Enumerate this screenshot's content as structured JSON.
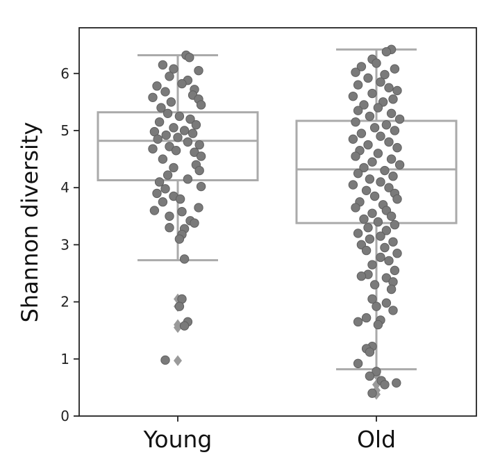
{
  "chart_data": {
    "type": "box",
    "overlay": "strip",
    "ylabel": "Shannon diversity",
    "xlabel": "",
    "ylim": [
      0,
      6.8
    ],
    "yticks": [
      0,
      1,
      2,
      3,
      4,
      5,
      6
    ],
    "categories": [
      "Young",
      "Old"
    ],
    "colors": {
      "box": "#aaaaaa",
      "point": "#7a7a7a",
      "point_edge": "#5f5f5f",
      "outlier": "#9a9a9a",
      "axis": "#222222"
    },
    "boxes": [
      {
        "category": "Young",
        "whisker_low": 2.73,
        "q1": 4.13,
        "median": 4.82,
        "q3": 5.32,
        "whisker_high": 6.32,
        "outliers": [
          2.05,
          1.92,
          1.6,
          1.55,
          0.97
        ],
        "points": [
          {
            "y": 6.32,
            "j": 0.1
          },
          {
            "y": 6.28,
            "j": 0.14
          },
          {
            "y": 6.15,
            "j": -0.18
          },
          {
            "y": 6.08,
            "j": -0.05
          },
          {
            "y": 6.05,
            "j": 0.25
          },
          {
            "y": 5.95,
            "j": -0.1
          },
          {
            "y": 5.88,
            "j": 0.12
          },
          {
            "y": 5.82,
            "j": 0.05
          },
          {
            "y": 5.78,
            "j": -0.25
          },
          {
            "y": 5.72,
            "j": 0.2
          },
          {
            "y": 5.68,
            "j": -0.15
          },
          {
            "y": 5.62,
            "j": 0.18
          },
          {
            "y": 5.58,
            "j": -0.3
          },
          {
            "y": 5.55,
            "j": 0.25
          },
          {
            "y": 5.5,
            "j": -0.08
          },
          {
            "y": 5.45,
            "j": 0.28
          },
          {
            "y": 5.4,
            "j": -0.2
          },
          {
            "y": 5.3,
            "j": -0.12
          },
          {
            "y": 5.25,
            "j": 0.02
          },
          {
            "y": 5.2,
            "j": 0.15
          },
          {
            "y": 5.15,
            "j": -0.22
          },
          {
            "y": 5.1,
            "j": 0.22
          },
          {
            "y": 5.05,
            "j": -0.05
          },
          {
            "y": 5.0,
            "j": 0.08
          },
          {
            "y": 4.98,
            "j": -0.28
          },
          {
            "y": 4.95,
            "j": 0.18
          },
          {
            "y": 4.92,
            "j": -0.14
          },
          {
            "y": 4.88,
            "j": 0.0
          },
          {
            "y": 4.85,
            "j": -0.24
          },
          {
            "y": 4.8,
            "j": 0.12
          },
          {
            "y": 4.75,
            "j": 0.26
          },
          {
            "y": 4.72,
            "j": -0.1
          },
          {
            "y": 4.68,
            "j": -0.3
          },
          {
            "y": 4.65,
            "j": -0.02
          },
          {
            "y": 4.62,
            "j": 0.2
          },
          {
            "y": 4.55,
            "j": 0.28
          },
          {
            "y": 4.5,
            "j": -0.18
          },
          {
            "y": 4.4,
            "j": 0.22
          },
          {
            "y": 4.35,
            "j": -0.05
          },
          {
            "y": 4.3,
            "j": 0.26
          },
          {
            "y": 4.22,
            "j": -0.12
          },
          {
            "y": 4.15,
            "j": 0.12
          },
          {
            "y": 4.1,
            "j": -0.22
          },
          {
            "y": 4.02,
            "j": 0.28
          },
          {
            "y": 3.98,
            "j": -0.15
          },
          {
            "y": 3.9,
            "j": -0.25
          },
          {
            "y": 3.85,
            "j": -0.05
          },
          {
            "y": 3.8,
            "j": 0.03
          },
          {
            "y": 3.75,
            "j": -0.18
          },
          {
            "y": 3.65,
            "j": 0.25
          },
          {
            "y": 3.6,
            "j": -0.28
          },
          {
            "y": 3.58,
            "j": 0.05
          },
          {
            "y": 3.5,
            "j": -0.1
          },
          {
            "y": 3.42,
            "j": 0.15
          },
          {
            "y": 3.38,
            "j": 0.2
          },
          {
            "y": 3.3,
            "j": -0.1
          },
          {
            "y": 3.28,
            "j": 0.08
          },
          {
            "y": 3.18,
            "j": 0.05
          },
          {
            "y": 3.1,
            "j": 0.02
          },
          {
            "y": 2.75,
            "j": 0.08
          },
          {
            "y": 2.05,
            "j": 0.05
          },
          {
            "y": 1.92,
            "j": 0.02
          },
          {
            "y": 1.65,
            "j": 0.12
          },
          {
            "y": 1.58,
            "j": 0.08
          },
          {
            "y": 0.98,
            "j": -0.15
          }
        ]
      },
      {
        "category": "Old",
        "whisker_low": 0.82,
        "q1": 3.38,
        "median": 4.32,
        "q3": 5.17,
        "whisker_high": 6.42,
        "outliers": [
          0.72,
          0.55,
          0.45,
          0.38
        ],
        "points": [
          {
            "y": 6.42,
            "j": 0.18
          },
          {
            "y": 6.38,
            "j": 0.12
          },
          {
            "y": 6.25,
            "j": -0.05
          },
          {
            "y": 6.18,
            "j": 0.0
          },
          {
            "y": 6.12,
            "j": -0.18
          },
          {
            "y": 6.08,
            "j": 0.22
          },
          {
            "y": 6.02,
            "j": -0.25
          },
          {
            "y": 5.98,
            "j": 0.1
          },
          {
            "y": 5.92,
            "j": -0.1
          },
          {
            "y": 5.85,
            "j": 0.05
          },
          {
            "y": 5.8,
            "j": -0.22
          },
          {
            "y": 5.75,
            "j": 0.15
          },
          {
            "y": 5.7,
            "j": 0.25
          },
          {
            "y": 5.65,
            "j": -0.05
          },
          {
            "y": 5.6,
            "j": -0.28
          },
          {
            "y": 5.55,
            "j": 0.2
          },
          {
            "y": 5.5,
            "j": 0.08
          },
          {
            "y": 5.45,
            "j": -0.15
          },
          {
            "y": 5.4,
            "j": 0.02
          },
          {
            "y": 5.35,
            "j": -0.22
          },
          {
            "y": 5.3,
            "j": 0.18
          },
          {
            "y": 5.25,
            "j": -0.08
          },
          {
            "y": 5.2,
            "j": 0.28
          },
          {
            "y": 5.15,
            "j": -0.25
          },
          {
            "y": 5.1,
            "j": 0.12
          },
          {
            "y": 5.05,
            "j": -0.02
          },
          {
            "y": 5.0,
            "j": 0.22
          },
          {
            "y": 4.95,
            "j": -0.18
          },
          {
            "y": 4.9,
            "j": 0.05
          },
          {
            "y": 4.85,
            "j": -0.28
          },
          {
            "y": 4.8,
            "j": 0.15
          },
          {
            "y": 4.75,
            "j": -0.1
          },
          {
            "y": 4.7,
            "j": 0.25
          },
          {
            "y": 4.65,
            "j": -0.2
          },
          {
            "y": 4.6,
            "j": 0.02
          },
          {
            "y": 4.55,
            "j": -0.25
          },
          {
            "y": 4.5,
            "j": 0.18
          },
          {
            "y": 4.45,
            "j": -0.05
          },
          {
            "y": 4.4,
            "j": 0.28
          },
          {
            "y": 4.35,
            "j": -0.15
          },
          {
            "y": 4.3,
            "j": 0.1
          },
          {
            "y": 4.25,
            "j": -0.22
          },
          {
            "y": 4.2,
            "j": 0.2
          },
          {
            "y": 4.15,
            "j": -0.08
          },
          {
            "y": 4.1,
            "j": 0.05
          },
          {
            "y": 4.05,
            "j": -0.28
          },
          {
            "y": 4.0,
            "j": 0.15
          },
          {
            "y": 3.95,
            "j": -0.12
          },
          {
            "y": 3.9,
            "j": 0.22
          },
          {
            "y": 3.85,
            "j": -0.02
          },
          {
            "y": 3.8,
            "j": 0.25
          },
          {
            "y": 3.75,
            "j": -0.2
          },
          {
            "y": 3.7,
            "j": 0.08
          },
          {
            "y": 3.65,
            "j": -0.25
          },
          {
            "y": 3.6,
            "j": 0.12
          },
          {
            "y": 3.55,
            "j": -0.05
          },
          {
            "y": 3.5,
            "j": 0.18
          },
          {
            "y": 3.45,
            "j": -0.15
          },
          {
            "y": 3.4,
            "j": 0.02
          },
          {
            "y": 3.35,
            "j": 0.22
          },
          {
            "y": 3.3,
            "j": -0.1
          },
          {
            "y": 3.25,
            "j": 0.12
          },
          {
            "y": 3.2,
            "j": -0.22
          },
          {
            "y": 3.15,
            "j": 0.05
          },
          {
            "y": 3.1,
            "j": -0.08
          },
          {
            "y": 3.05,
            "j": 0.2
          },
          {
            "y": 3.0,
            "j": -0.18
          },
          {
            "y": 2.95,
            "j": 0.1
          },
          {
            "y": 2.9,
            "j": -0.12
          },
          {
            "y": 2.85,
            "j": 0.25
          },
          {
            "y": 2.78,
            "j": 0.05
          },
          {
            "y": 2.72,
            "j": 0.15
          },
          {
            "y": 2.65,
            "j": -0.05
          },
          {
            "y": 2.55,
            "j": 0.22
          },
          {
            "y": 2.48,
            "j": -0.1
          },
          {
            "y": 2.45,
            "j": -0.18
          },
          {
            "y": 2.42,
            "j": 0.12
          },
          {
            "y": 2.35,
            "j": 0.2
          },
          {
            "y": 2.3,
            "j": -0.02
          },
          {
            "y": 2.22,
            "j": 0.18
          },
          {
            "y": 2.05,
            "j": -0.05
          },
          {
            "y": 1.98,
            "j": 0.12
          },
          {
            "y": 1.92,
            "j": 0.0
          },
          {
            "y": 1.85,
            "j": 0.2
          },
          {
            "y": 1.72,
            "j": -0.12
          },
          {
            "y": 1.68,
            "j": 0.05
          },
          {
            "y": 1.65,
            "j": -0.22
          },
          {
            "y": 1.6,
            "j": 0.02
          },
          {
            "y": 1.22,
            "j": -0.05
          },
          {
            "y": 1.18,
            "j": -0.12
          },
          {
            "y": 1.12,
            "j": -0.08
          },
          {
            "y": 0.92,
            "j": -0.22
          },
          {
            "y": 0.78,
            "j": 0.0
          },
          {
            "y": 0.7,
            "j": -0.08
          },
          {
            "y": 0.62,
            "j": 0.06
          },
          {
            "y": 0.58,
            "j": 0.24
          },
          {
            "y": 0.55,
            "j": 0.1
          },
          {
            "y": 0.4,
            "j": -0.05
          }
        ]
      }
    ],
    "grid": false,
    "legend": "none"
  }
}
